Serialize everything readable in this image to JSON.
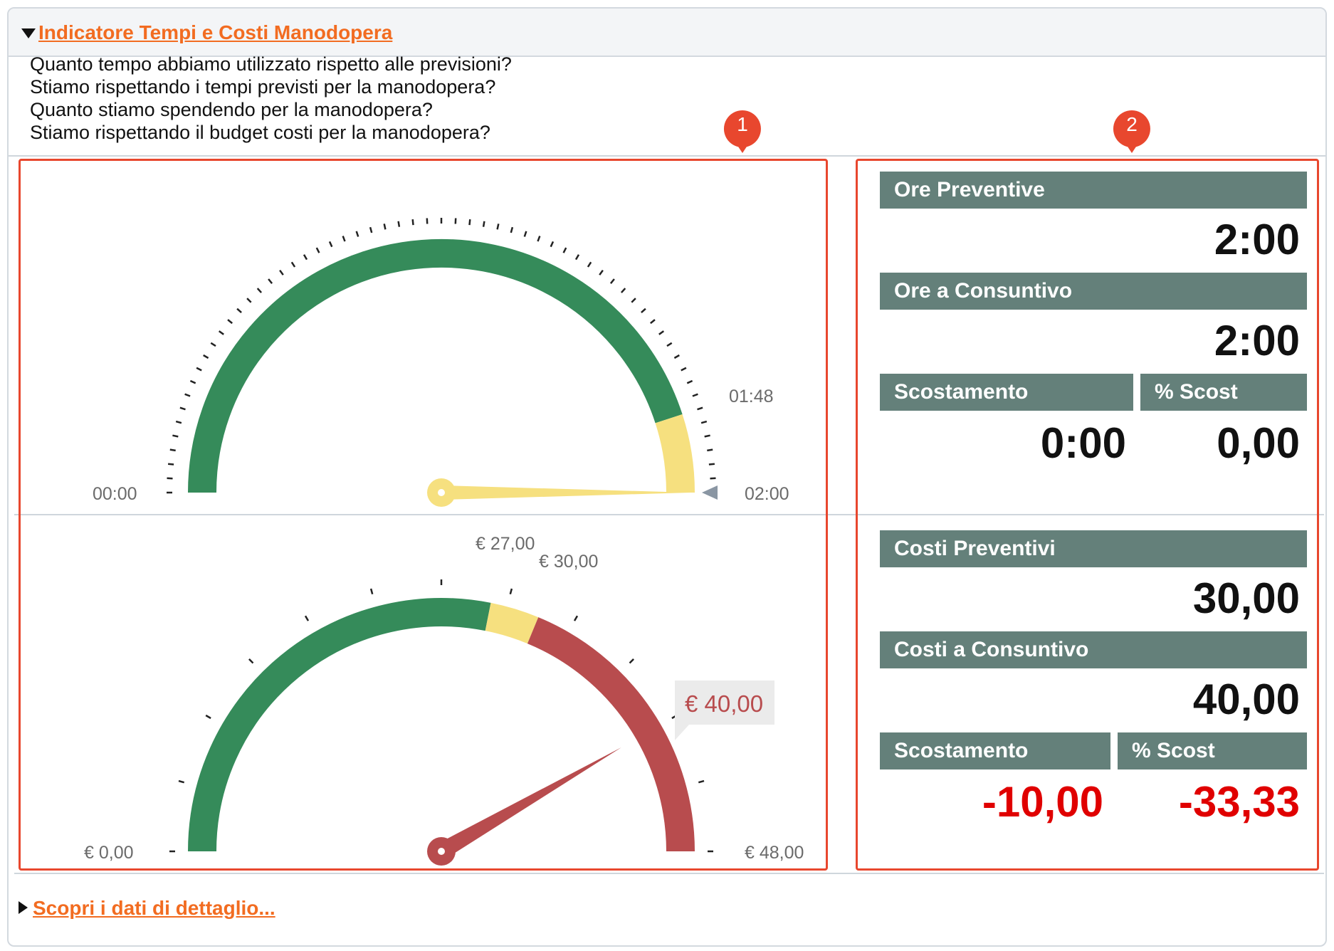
{
  "section": {
    "title": "Indicatore Tempi e Costi Manodopera",
    "questions": [
      "Quanto tempo abbiamo utilizzato rispetto alle previsioni?",
      "Stiamo rispettando i tempi previsti per la manodopera?",
      "Quanto stiamo spendendo per la manodopera?",
      "Stiamo rispettando il budget costi per la manodopera?"
    ]
  },
  "markers": [
    "1",
    "2"
  ],
  "gauges": {
    "time": {
      "min_label": "00:00",
      "max_label": "02:00",
      "threshold_label": "01:48",
      "min_minutes": 0,
      "max_minutes": 120,
      "threshold_minutes": 108,
      "value_minutes": 120,
      "band_colors": {
        "ok": "#358b5a",
        "warn": "#f6e07f"
      }
    },
    "cost": {
      "min_label": "€ 0,00",
      "max_label": "€ 48,00",
      "warn_label": "€ 27,00",
      "budget_label": "€ 30,00",
      "value_label": "€ 40,00",
      "min": 0,
      "max": 48,
      "warn": 27,
      "budget": 30,
      "value": 40,
      "band_colors": {
        "ok": "#358b5a",
        "warn": "#f6e07f",
        "over": "#b84c4e"
      }
    }
  },
  "kpi": {
    "time": {
      "preventive_label": "Ore Preventive",
      "preventive_value": "2:00",
      "actual_label": "Ore a Consuntivo",
      "actual_value": "2:00",
      "deviation_label": "Scostamento",
      "deviation_value": "0:00",
      "pct_label": "% Scost",
      "pct_value": "0,00"
    },
    "cost": {
      "preventive_label": "Costi Preventivi",
      "preventive_value": "30,00",
      "actual_label": "Costi a Consuntivo",
      "actual_value": "40,00",
      "deviation_label": "Scostamento",
      "deviation_value": "-10,00",
      "pct_label": "% Scost",
      "pct_value": "-33,33"
    }
  },
  "footer": {
    "link": "Scopri i dati di dettaglio..."
  }
}
